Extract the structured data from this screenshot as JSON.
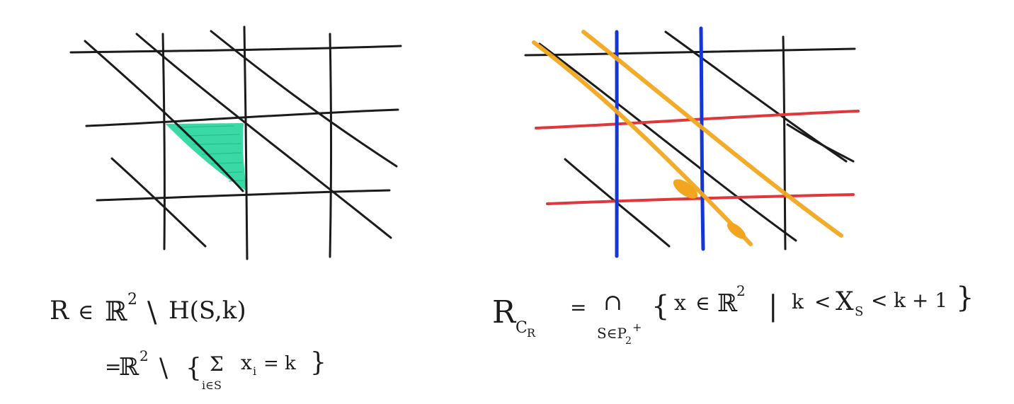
{
  "colors": {
    "ink": "#1b1b1b",
    "region_fill": "#2fd6a0",
    "horizontal_highlight": "#e0383a",
    "vertical_highlight": "#1436d6",
    "diagonal_highlight": "#f2a61f"
  },
  "left_panel": {
    "formula_line1": {
      "lhs": "R",
      "relation": "∈",
      "space": "ℝ",
      "space_exp": "2",
      "setminus": "\\",
      "rhs": "H(S,k)"
    },
    "formula_line2": {
      "eq": "=",
      "space": "ℝ",
      "space_exp": "2",
      "setminus": "\\",
      "open_brace": "{",
      "sum": "Σ",
      "sum_sub": "i∈S",
      "term": "x",
      "term_sub": "i",
      "eq_k": "= k",
      "close_brace": "}"
    }
  },
  "right_panel": {
    "formula": {
      "lhs": "R",
      "lhs_sub": "C",
      "lhs_sub_sub": "R",
      "eq": "=",
      "intersection": "∩",
      "intersection_sub": "S∈P",
      "intersection_sub_sub": "2",
      "intersection_sub_sup": "+",
      "open_brace": "{",
      "var": "x",
      "relation": "∈",
      "space": "ℝ",
      "space_exp": "2",
      "bar": "|",
      "k_lower": "k",
      "lt1": "<",
      "x_s": "X",
      "x_s_sub": "S",
      "lt2": "<",
      "k_upper": "k + 1",
      "close_brace": "}"
    }
  }
}
